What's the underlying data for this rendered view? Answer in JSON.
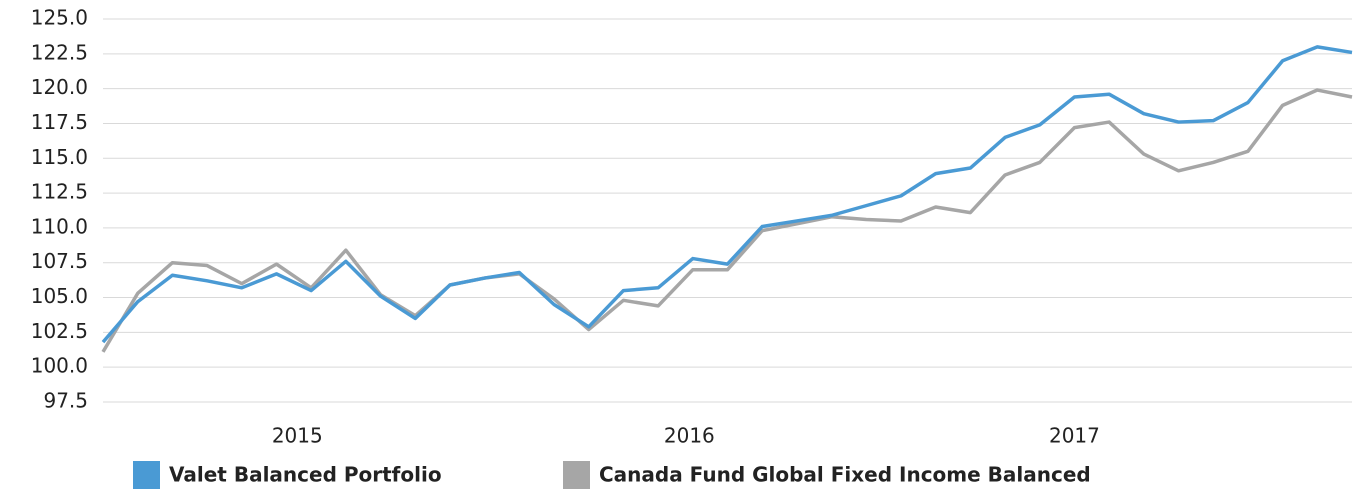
{
  "chart_data": {
    "type": "line",
    "x": [
      0,
      1,
      2,
      3,
      4,
      5,
      6,
      7,
      8,
      9,
      10,
      11,
      12,
      13,
      14,
      15,
      16,
      17,
      18,
      19,
      20,
      21,
      22,
      23,
      24,
      25,
      26,
      27,
      28,
      29,
      30,
      31,
      32,
      33,
      34,
      35,
      36
    ],
    "xlim": [
      0,
      36
    ],
    "xticks": [
      {
        "value": 5.6,
        "label": "2015"
      },
      {
        "value": 16.9,
        "label": "2016"
      },
      {
        "value": 28,
        "label": "2017"
      }
    ],
    "ylim": [
      97.5,
      125
    ],
    "yticks": [
      {
        "value": 97.5,
        "label": "97.5"
      },
      {
        "value": 100,
        "label": "100.0"
      },
      {
        "value": 102.5,
        "label": "102.5"
      },
      {
        "value": 105,
        "label": "105.0"
      },
      {
        "value": 107.5,
        "label": "107.5"
      },
      {
        "value": 110,
        "label": "110.0"
      },
      {
        "value": 112.5,
        "label": "112.5"
      },
      {
        "value": 115,
        "label": "115.0"
      },
      {
        "value": 117.5,
        "label": "117.5"
      },
      {
        "value": 120,
        "label": "120.0"
      },
      {
        "value": 122.5,
        "label": "122.5"
      },
      {
        "value": 125,
        "label": "125.0"
      }
    ],
    "grid": true,
    "legend": "bottom",
    "series": [
      {
        "name": "Valet Balanced Portfolio",
        "color": "#4a9ad4",
        "values": [
          101.8,
          104.7,
          106.6,
          106.2,
          105.7,
          106.7,
          105.5,
          107.6,
          105.1,
          103.5,
          105.9,
          106.4,
          106.8,
          104.5,
          102.9,
          105.5,
          105.7,
          107.8,
          107.4,
          110.1,
          110.5,
          110.9,
          111.6,
          112.3,
          113.9,
          114.3,
          116.5,
          117.4,
          119.4,
          119.6,
          118.2,
          117.6,
          117.7,
          119.0,
          122.0,
          123.0,
          122.6
        ]
      },
      {
        "name": "Canada Fund Global Fixed Income Balanced",
        "color": "#a6a6a6",
        "values": [
          101.1,
          105.3,
          107.5,
          107.3,
          106.0,
          107.4,
          105.7,
          108.4,
          105.2,
          103.7,
          105.9,
          106.4,
          106.7,
          104.9,
          102.7,
          104.8,
          104.4,
          107.0,
          107.0,
          109.8,
          110.3,
          110.8,
          110.6,
          110.5,
          111.5,
          111.1,
          113.8,
          114.7,
          117.2,
          117.6,
          115.3,
          114.1,
          114.7,
          115.5,
          118.8,
          119.9,
          119.4
        ]
      }
    ]
  }
}
